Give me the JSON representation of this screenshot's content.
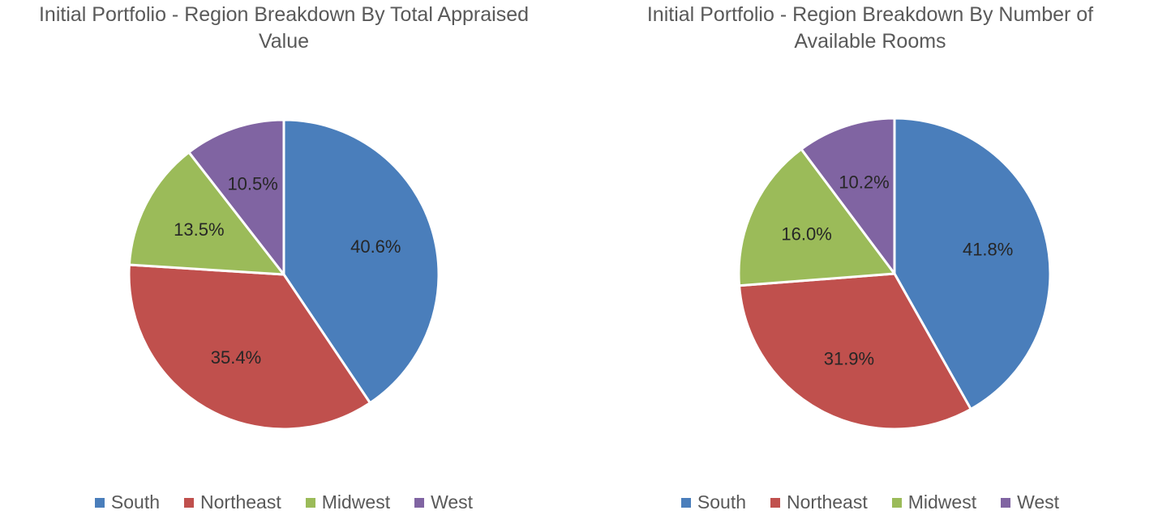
{
  "chart_data": [
    {
      "type": "pie",
      "title_lines": [
        "Initial Portfolio - Region Breakdown By Total Appraised",
        "Value"
      ],
      "categories": [
        "South",
        "Northeast",
        "Midwest",
        "West"
      ],
      "values": [
        40.6,
        35.4,
        13.5,
        10.5
      ],
      "labels": [
        "40.6%",
        "35.4%",
        "13.5%",
        "10.5%"
      ],
      "colors": [
        "#4a7ebb",
        "#c0504d",
        "#9bbb59",
        "#8064a2"
      ],
      "legend": [
        "South",
        "Northeast",
        "Midwest",
        "West"
      ],
      "legend_position": "bottom"
    },
    {
      "type": "pie",
      "title_lines": [
        "Initial Portfolio - Region Breakdown By Number of",
        "Available Rooms"
      ],
      "categories": [
        "South",
        "Northeast",
        "Midwest",
        "West"
      ],
      "values": [
        41.8,
        31.9,
        16.0,
        10.2
      ],
      "labels": [
        "41.8%",
        "31.9%",
        "16.0%",
        "10.2%"
      ],
      "colors": [
        "#4a7ebb",
        "#c0504d",
        "#9bbb59",
        "#8064a2"
      ],
      "legend": [
        "South",
        "Northeast",
        "Midwest",
        "West"
      ],
      "legend_position": "bottom"
    }
  ]
}
